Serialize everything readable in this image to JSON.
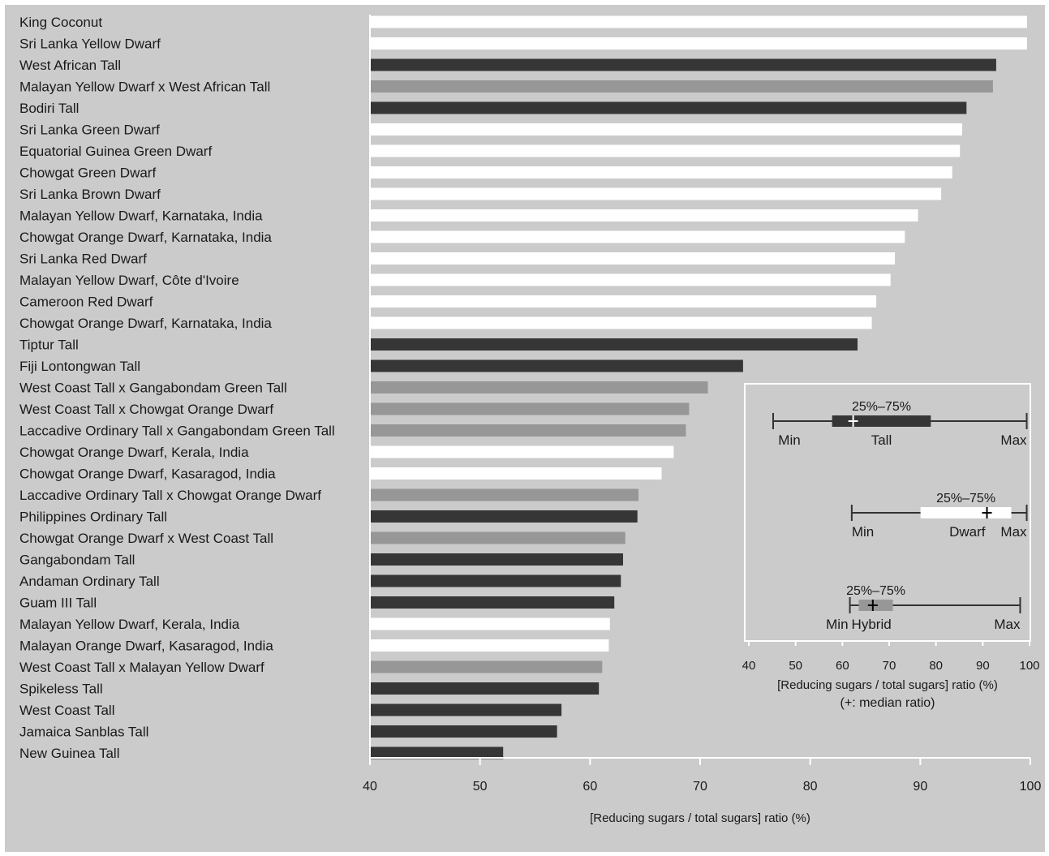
{
  "chart_data": {
    "type": "bar",
    "orientation": "horizontal",
    "categories": [
      "King Coconut",
      "Sri Lanka Yellow Dwarf",
      "West African Tall",
      "Malayan Yellow Dwarf x West African Tall",
      "Bodiri Tall",
      "Sri Lanka Green Dwarf",
      "Equatorial Guinea Green Dwarf",
      "Chowgat Green Dwarf",
      "Sri Lanka Brown Dwarf",
      "Malayan Yellow Dwarf, Karnataka, India",
      "Chowgat Orange Dwarf, Karnataka, India",
      "Sri Lanka Red Dwarf",
      "Malayan Yellow Dwarf, Côte d'Ivoire",
      "Cameroon Red Dwarf",
      "Chowgat Orange Dwarf, Karnataka, India",
      "Tiptur Tall",
      "Fiji Lontongwan Tall",
      "West Coast Tall x Gangabondam Green Tall",
      "West Coast Tall x Chowgat Orange Dwarf",
      "Laccadive Ordinary Tall x Gangabondam Green Tall",
      "Chowgat Orange Dwarf, Kerala, India",
      "Chowgat Orange Dwarf, Kasaragod, India",
      "Laccadive Ordinary Tall x Chowgat Orange Dwarf",
      "Philippines Ordinary Tall",
      "Chowgat Orange Dwarf x West Coast Tall",
      "Gangabondam Tall",
      "Andaman Ordinary Tall",
      "Guam III Tall",
      "Malayan Yellow Dwarf, Kerala, India",
      "Malayan Orange Dwarf, Kasaragod, India",
      "West Coast Tall x Malayan Yellow Dwarf",
      "Spikeless Tall",
      "West Coast Tall",
      "Jamaica Sanblas Tall",
      "New Guinea Tall"
    ],
    "values": [
      99.7,
      99.7,
      96.9,
      96.6,
      94.2,
      93.8,
      93.6,
      92.9,
      91.9,
      89.8,
      88.6,
      87.7,
      87.3,
      86.0,
      85.6,
      84.3,
      73.9,
      70.7,
      69.0,
      68.7,
      67.6,
      66.5,
      64.4,
      64.3,
      63.2,
      63.0,
      62.8,
      62.2,
      61.8,
      61.7,
      61.1,
      60.8,
      57.4,
      57.0,
      52.1
    ],
    "groups": [
      "dwarf",
      "dwarf",
      "tall",
      "hybrid",
      "tall",
      "dwarf",
      "dwarf",
      "dwarf",
      "dwarf",
      "dwarf",
      "dwarf",
      "dwarf",
      "dwarf",
      "dwarf",
      "dwarf",
      "tall",
      "tall",
      "hybrid",
      "hybrid",
      "hybrid",
      "dwarf",
      "dwarf",
      "hybrid",
      "tall",
      "hybrid",
      "tall",
      "tall",
      "tall",
      "dwarf",
      "dwarf",
      "hybrid",
      "tall",
      "tall",
      "tall",
      "tall"
    ],
    "group_colors": {
      "tall": "#363636",
      "dwarf": "#ffffff",
      "hybrid": "#979797"
    },
    "xlim": [
      40,
      100
    ],
    "xticks": [
      40,
      50,
      60,
      70,
      80,
      90,
      100
    ],
    "xlabel": "[Reducing sugars / total sugars] ratio (%)",
    "background": "#cbcbcb",
    "inset": {
      "type": "boxplot",
      "xlim": [
        40,
        100
      ],
      "xticks": [
        40,
        50,
        60,
        70,
        80,
        90,
        100
      ],
      "xlabel": "[Reducing sugars / total sugars] ratio (%)",
      "xlabel2": "(+: median ratio)",
      "boxes": [
        {
          "group": "tall",
          "name": "Tall",
          "min": 45.2,
          "q1": 57.8,
          "median": 62.3,
          "q3": 78.9,
          "max": 99.4,
          "iqr_label": "25%–75%",
          "min_label": "Min",
          "max_label": "Max",
          "color": "#363636",
          "median_color": "#ffffff"
        },
        {
          "group": "dwarf",
          "name": "Dwarf",
          "min": 62.0,
          "q1": 76.7,
          "median": 90.9,
          "q3": 96.1,
          "max": 99.4,
          "iqr_label": "25%–75%",
          "min_label": "Min",
          "max_label": "Max",
          "color": "#ffffff",
          "median_color": "#000000"
        },
        {
          "group": "hybrid",
          "name": "Hybrid",
          "min": 61.6,
          "q1": 63.5,
          "median": 66.5,
          "q3": 70.8,
          "max": 98.0,
          "iqr_label": "25%–75%",
          "min_label": "Min",
          "max_label": "Max",
          "color": "#979797",
          "median_color": "#000000"
        }
      ]
    }
  }
}
